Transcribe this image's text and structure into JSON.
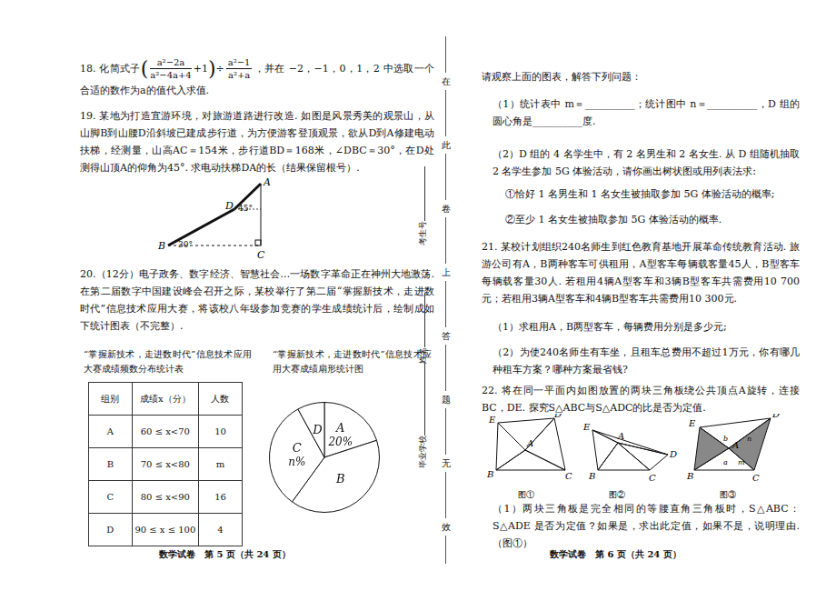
{
  "q18": {
    "lead": "18. 化简式子",
    "open": "(",
    "num1": "a²−2a",
    "den1": "a²−4a+4",
    "plus": "+1",
    "close": ")",
    "div": "÷",
    "num2": "a²−1",
    "den2": "a²+a",
    "tail": "，并在 −2，−1，0，1，2 中选取一个合适的数作为a的值代入求值."
  },
  "q19": {
    "text": "19. 某地为打造宜游环境，对旅游道路进行改造. 如图是风景秀美的观景山，从山脚B到山腰D沿斜坡已建成步行道，为方便游客登顶观景，欲从D到A修建电动扶梯，经测量，山高AC＝154米，步行道BD＝168米，∠DBC＝30°，在D处测得山顶A的仰角为45°. 求电动扶梯DA的长（结果保留根号）.",
    "figure_labels": [
      "A",
      "D",
      "B",
      "C",
      "45°",
      "30°"
    ]
  },
  "q20": {
    "intro": "20.（12分）电子政务、数字经济、智慧社会…一场数字革命正在神州大地激荡. 在第二届数字中国建设峰会召开之际，某校举行了第二届“掌握新技术，走进数时代”信息技术应用大赛，将该校八年级参加竞赛的学生成绩统计后，绘制成如下统计图表（不完整）.",
    "table_title": "“掌握新技术，走进数时代”信息技术应用大赛成绩频数分布统计表",
    "table": {
      "header": [
        "组别",
        "成绩x（分）",
        "人数"
      ],
      "rows": [
        [
          "A",
          "60 ≤ x<70",
          "10"
        ],
        [
          "B",
          "70 ≤ x<80",
          "m"
        ],
        [
          "C",
          "80 ≤ x<90",
          "16"
        ],
        [
          "D",
          "90 ≤ x ≤ 100",
          "4"
        ]
      ]
    },
    "after": "请观察上面的图表，解答下列问题：",
    "p1": "（1）统计表中 m＝__________；统计图中 n＝__________，D 组的圆心角是__________度.",
    "p2": "（2）D 组的 4 名学生中，有 2 名男生和 2 名女生. 从 D 组随机抽取 2 名学生参加 5G 体验活动，请你画出树状图或用列表法求:",
    "p2a": "①恰好 1 名男生和 1 名女生被抽取参加 5G 体验活动的概率;",
    "p2b": "②至少 1 名女生被抽取参加 5G 体验活动的概率."
  },
  "chart_data": {
    "type": "pie",
    "title": "“掌握新技术，走进数时代”信息技术应用大赛成绩扇形统计图",
    "categories": [
      "A",
      "B",
      "C",
      "D"
    ],
    "values": [
      20,
      40,
      32,
      8
    ],
    "value_labels": [
      "20%",
      null,
      "n%",
      null
    ],
    "color": "#ffffff"
  },
  "q21": {
    "text": "21. 某校计划组织240名师生到红色教育基地开展革命传统教育活动. 旅游公司有A，B两种客车可供租用，A型客车每辆载客量45人，B型客车每辆载客量30人. 若租用4辆A型客车和3辆B型客车共需费用10 700元；若租用3辆A型客车和4辆B型客车共需费用10 300元.",
    "p1": "（1）求租用A，B两型客车，每辆费用分别是多少元;",
    "p2": "（2）为使240名师生有车坐，且租车总费用不超过1万元，你有哪几种租车方案？哪种方案最省钱?"
  },
  "q22": {
    "text": "22. 将在同一平面内如图放置的两块三角板绕公共顶点A旋转，连接BC，DE. 探究S△ABC与S△ADC的比是否为定值.",
    "figures": [
      {
        "labels": [
          "E",
          "D",
          "A",
          "B",
          "C"
        ],
        "caption": "图①"
      },
      {
        "labels": [
          "E",
          "D",
          "A",
          "B",
          "C"
        ],
        "caption": "图②"
      },
      {
        "labels": [
          "E",
          "D",
          "A",
          "B",
          "C",
          "b",
          "n",
          "a",
          "m"
        ],
        "caption": "图③"
      }
    ],
    "p1": "（1）两块三角板是完全相同的等腰直角三角板时，S△ABC：S△ADE 是否为定值？如果是，求出此定值，如果不是，说明理由.（图①）"
  },
  "seal": {
    "chars": [
      "在",
      "此",
      "卷",
      "上",
      "答",
      "题",
      "无",
      "效"
    ],
    "fields": [
      "考生号",
      "姓名",
      "毕业学校"
    ]
  },
  "footers": [
    "数学试卷　第 5 页（共 24 页）",
    "数学试卷　第 6 页（共 24 页）"
  ]
}
